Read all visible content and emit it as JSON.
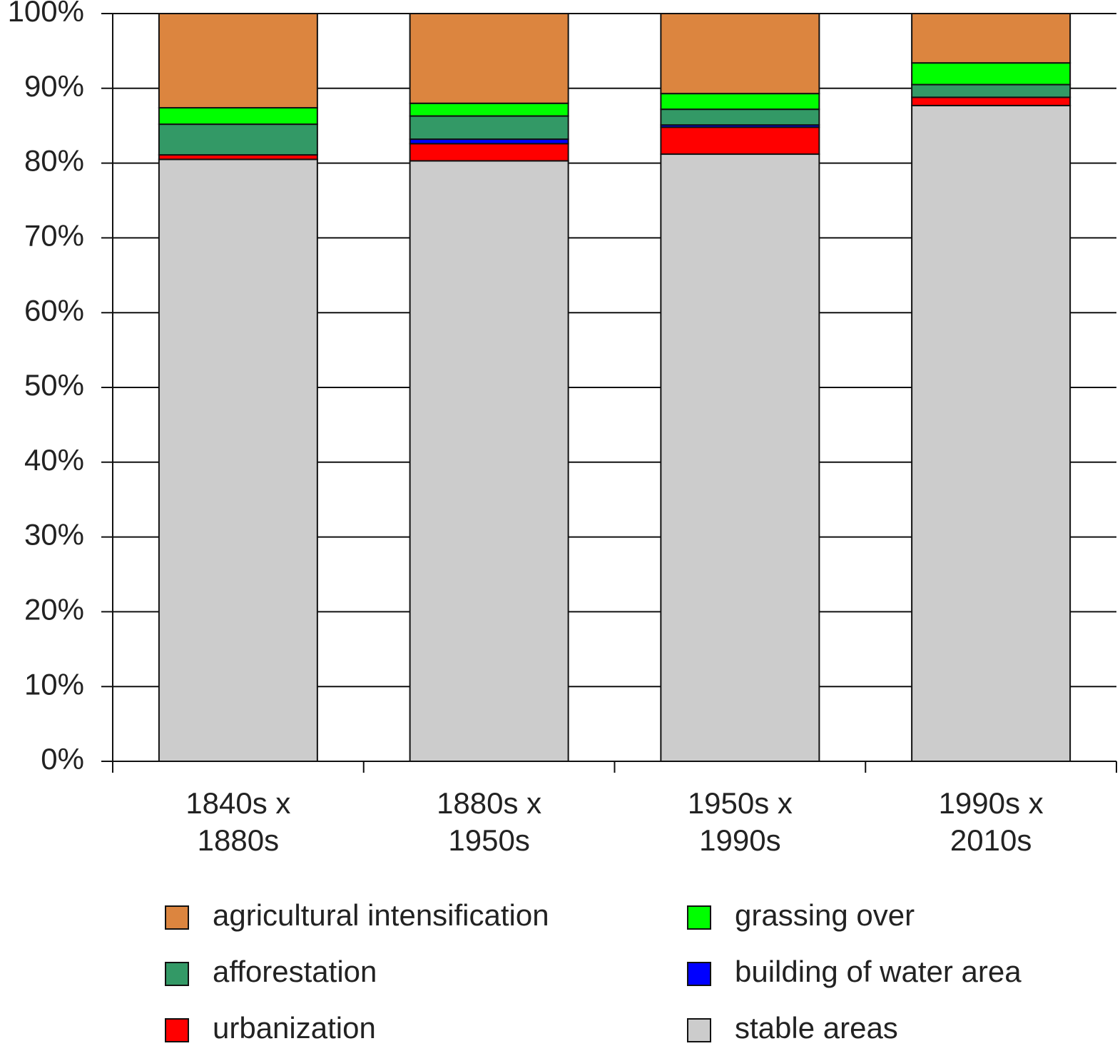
{
  "chart_data": {
    "type": "stacked_bar",
    "categories": [
      "1840s x 1880s",
      "1880s x 1950s",
      "1950s x 1990s",
      "1990s x 2010s"
    ],
    "series": [
      {
        "name": "stable areas",
        "color": "#cccccc",
        "values": [
          80.5,
          80.3,
          81.2,
          87.7
        ]
      },
      {
        "name": "urbanization",
        "color": "#ff0000",
        "values": [
          0.6,
          2.3,
          3.6,
          1.1
        ]
      },
      {
        "name": "building of water area",
        "color": "#0000ff",
        "values": [
          0,
          0.6,
          0.3,
          0
        ]
      },
      {
        "name": "afforestation",
        "color": "#339966",
        "values": [
          4.1,
          3.1,
          2.1,
          1.7
        ]
      },
      {
        "name": "grassing over",
        "color": "#00ff00",
        "values": [
          2.2,
          1.7,
          2.1,
          2.9
        ]
      },
      {
        "name": "agricultural intensification",
        "color": "#dc853f",
        "values": [
          12.6,
          12.0,
          10.7,
          6.6
        ]
      }
    ],
    "ylim": [
      0,
      100
    ],
    "yticks": [
      {
        "value": 0,
        "label": "0%"
      },
      {
        "value": 10,
        "label": "10%"
      },
      {
        "value": 20,
        "label": "20%"
      },
      {
        "value": 30,
        "label": "30%"
      },
      {
        "value": 40,
        "label": "40%"
      },
      {
        "value": 50,
        "label": "50%"
      },
      {
        "value": 60,
        "label": "60%"
      },
      {
        "value": 70,
        "label": "70%"
      },
      {
        "value": 80,
        "label": "80%"
      },
      {
        "value": 90,
        "label": "90%"
      },
      {
        "value": 100,
        "label": "100%"
      }
    ],
    "grid": true
  }
}
